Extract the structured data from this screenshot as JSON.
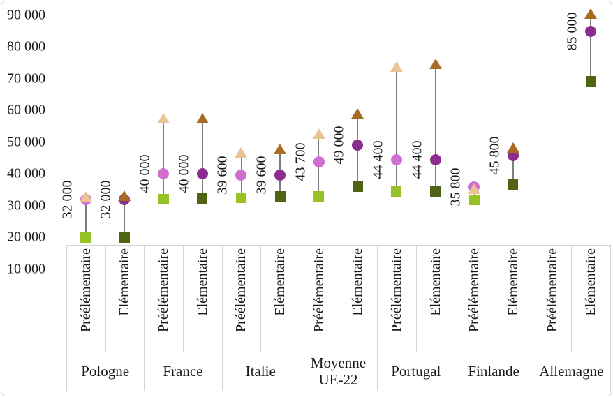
{
  "chart_data": {
    "type": "scatter",
    "title": "",
    "xlabel": "",
    "ylabel": "",
    "ylim": [
      10000,
      92000
    ],
    "grid": false,
    "legend": null,
    "yticks": [
      {
        "label": "90 000",
        "value": 90000
      },
      {
        "label": "80 000",
        "value": 80000
      },
      {
        "label": "70 000",
        "value": 70000
      },
      {
        "label": "60 000",
        "value": 60000
      },
      {
        "label": "50 000",
        "value": 50000
      },
      {
        "label": "40 000",
        "value": 40000
      },
      {
        "label": "30 000",
        "value": 30000
      },
      {
        "label": "20 000",
        "value": 20000
      },
      {
        "label": "10 000",
        "value": 10000
      }
    ],
    "x_levels": [
      "Préélémentaire",
      "Elémentaire"
    ],
    "countries": [
      "Pologne",
      "France",
      "Italie",
      "Moyenne UE-22",
      "Portugal",
      "Finlande",
      "Allemagne"
    ],
    "groups": [
      {
        "country": "Pologne",
        "level": "Préélémentaire",
        "style": "pre",
        "square": 20000,
        "circle": 32000,
        "triangle": 32800,
        "label": "32 000"
      },
      {
        "country": "Pologne",
        "level": "Elémentaire",
        "style": "elem",
        "square": 20000,
        "circle": 32000,
        "triangle": 33200,
        "label": "32 000"
      },
      {
        "country": "France",
        "level": "Préélémentaire",
        "style": "pre",
        "square": 32000,
        "circle": 40000,
        "triangle": 57500,
        "label": "40 000"
      },
      {
        "country": "France",
        "level": "Elémentaire",
        "style": "elem",
        "square": 32300,
        "circle": 40000,
        "triangle": 57500,
        "label": "40 000"
      },
      {
        "country": "Italie",
        "level": "Préélémentaire",
        "style": "pre",
        "square": 32400,
        "circle": 39600,
        "triangle": 46700,
        "label": "39 600"
      },
      {
        "country": "Italie",
        "level": "Elémentaire",
        "style": "elem",
        "square": 32800,
        "circle": 39600,
        "triangle": 47800,
        "label": "39 600"
      },
      {
        "country": "Moyenne UE-22",
        "level": "Préélémentaire",
        "style": "pre",
        "square": 32900,
        "circle": 43700,
        "triangle": 52600,
        "label": "43 700"
      },
      {
        "country": "Moyenne UE-22",
        "level": "Elémentaire",
        "style": "elem",
        "square": 35900,
        "circle": 49000,
        "triangle": 59100,
        "label": "49 000"
      },
      {
        "country": "Portugal",
        "level": "Préélémentaire",
        "style": "pre",
        "square": 34500,
        "circle": 44400,
        "triangle": 73900,
        "label": "44 400"
      },
      {
        "country": "Portugal",
        "level": "Elémentaire",
        "style": "elem",
        "square": 34500,
        "circle": 44400,
        "triangle": 74600,
        "label": "44 400"
      },
      {
        "country": "Finlande",
        "level": "Préélémentaire",
        "style": "pre",
        "square": 31800,
        "circle": 35800,
        "triangle": 35300,
        "label": "35 800"
      },
      {
        "country": "Finlande",
        "level": "Elémentaire",
        "style": "elem",
        "square": 36600,
        "circle": 45800,
        "triangle": 48200,
        "label": "45 800"
      },
      {
        "country": "Allemagne",
        "level": "Préélémentaire",
        "style": "pre",
        "square": null,
        "circle": null,
        "triangle": null,
        "label": null
      },
      {
        "country": "Allemagne",
        "level": "Elémentaire",
        "style": "elem",
        "square": 69100,
        "circle": 85000,
        "triangle": 90500,
        "label": "85 000"
      }
    ],
    "colors": {
      "pre": {
        "square": "#97C226",
        "circle": "#CF6FCF",
        "triangle": "#EBC495"
      },
      "elem": {
        "square": "#4F6415",
        "circle": "#8B2D8F",
        "triangle": "#A86B24"
      },
      "connector": "#7F7F7F",
      "grid": "#D3D3D3",
      "text": "#1A1A1A",
      "background": "#FFFFFF",
      "frame_border": "#C9C9C9"
    }
  }
}
